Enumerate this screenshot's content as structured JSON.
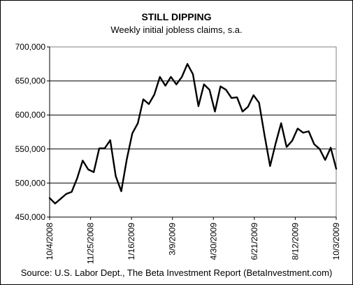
{
  "chart_data": {
    "type": "line",
    "title": "STILL DIPPING",
    "subtitle": "Weekly initial jobless claims, s.a.",
    "source": "Source: U.S. Labor Dept., The Beta Investment Report (BetaInvestment.com)",
    "xlabel": "",
    "ylabel": "",
    "ylim": [
      450000,
      700000
    ],
    "y_ticks": [
      450000,
      500000,
      550000,
      600000,
      650000,
      700000
    ],
    "y_tick_labels": [
      "450,000",
      "500,000",
      "550,000",
      "600,000",
      "650,000",
      "700,000"
    ],
    "x_tick_labels": [
      "10/4/2008",
      "11/25/2008",
      "1/16/2009",
      "3/9/2009",
      "4/30/2009",
      "6/21/2009",
      "8/12/2009",
      "10/3/2009"
    ],
    "x_tick_indices": [
      0,
      7.43,
      14.86,
      22.29,
      29.71,
      37.14,
      44.57,
      52
    ],
    "grid": "horizontal",
    "line_color": "#000000",
    "series": [
      {
        "values": [
          478000,
          470000,
          477000,
          484000,
          487000,
          507000,
          533000,
          520000,
          516000,
          551000,
          551000,
          563000,
          510000,
          488000,
          535000,
          573000,
          588000,
          623000,
          616000,
          630000,
          656000,
          643000,
          656000,
          645000,
          656000,
          675000,
          660000,
          613000,
          645000,
          637000,
          605000,
          642000,
          637000,
          625000,
          626000,
          605000,
          612000,
          629000,
          618000,
          570000,
          525000,
          558000,
          588000,
          553000,
          562000,
          580000,
          574000,
          576000,
          557000,
          550000,
          534000,
          552000,
          521000
        ]
      }
    ]
  }
}
